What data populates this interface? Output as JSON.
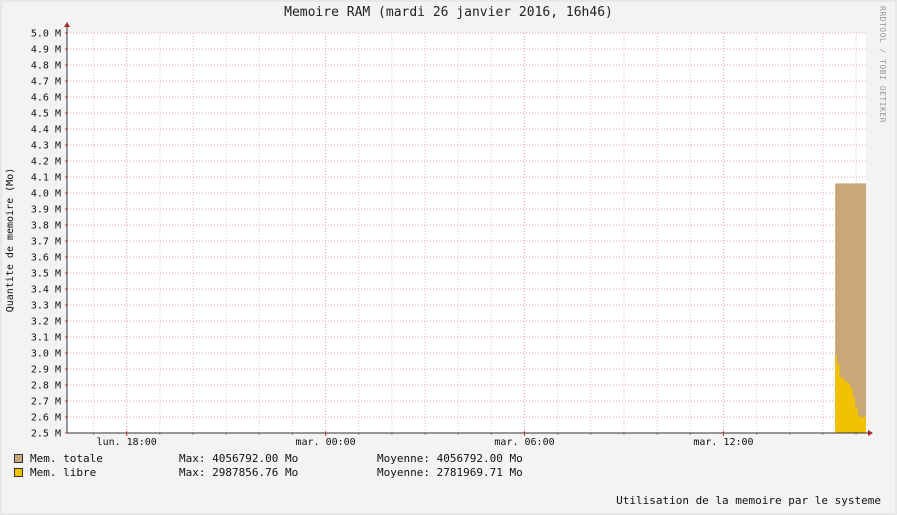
{
  "chart_data": {
    "type": "area",
    "title": "Memoire RAM (mardi 26 janvier 2016, 16h46)",
    "ylabel": "Quantite de memoire (Mo)",
    "ylim": [
      2.5,
      5.0
    ],
    "y_ticks": [
      "2.5 M",
      "2.6 M",
      "2.7 M",
      "2.8 M",
      "2.9 M",
      "3.0 M",
      "3.1 M",
      "3.2 M",
      "3.3 M",
      "3.4 M",
      "3.5 M",
      "3.6 M",
      "3.7 M",
      "3.8 M",
      "3.9 M",
      "4.0 M",
      "4.1 M",
      "4.2 M",
      "4.3 M",
      "4.4 M",
      "4.5 M",
      "4.6 M",
      "4.7 M",
      "4.8 M",
      "4.9 M",
      "5.0 M"
    ],
    "x_ticks": [
      "lun. 18:00",
      "mar. 00:00",
      "mar. 06:00",
      "mar. 12:00"
    ],
    "x_tick_hours": [
      18,
      24,
      30,
      36
    ],
    "xlim_hours": [
      16.2,
      40.3
    ],
    "grid": true,
    "series": [
      {
        "name": "Mem. totale",
        "color": "#c8a878",
        "x_hours": [
          39.37,
          39.5,
          40.0,
          40.3
        ],
        "values": [
          4.06,
          4.06,
          4.06,
          4.06
        ],
        "max": "4056792.00 Mo",
        "avg": "4056792.00 Mo"
      },
      {
        "name": "Mem. libre",
        "color": "#f2c200",
        "x_hours": [
          39.37,
          39.43,
          39.5,
          39.58,
          39.66,
          39.75,
          39.82,
          39.9,
          39.97,
          40.05,
          40.12,
          40.2,
          40.3
        ],
        "values": [
          2.98,
          2.93,
          2.85,
          2.84,
          2.82,
          2.81,
          2.78,
          2.72,
          2.66,
          2.61,
          2.6,
          2.6,
          2.6
        ],
        "max": "2987856.76 Mo",
        "avg": "2781969.71 Mo"
      }
    ],
    "legend_max_label": "Max:",
    "legend_avg_label": "Moyenne:"
  },
  "watermark": "RRDTOOL / TOBI OETIKER",
  "footer": "Utilisation de la memoire par le systeme"
}
